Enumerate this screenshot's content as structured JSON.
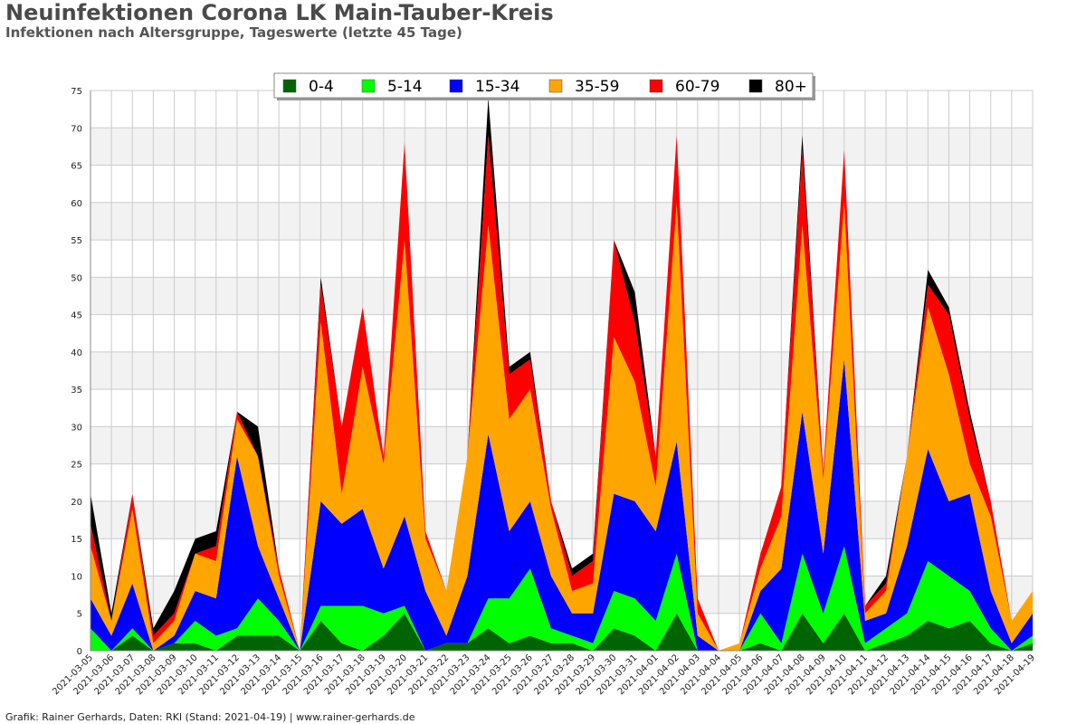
{
  "header": {
    "title": "Neuinfektionen Corona LK Main-Tauber-Kreis",
    "subtitle": "Infektionen nach Altersgruppe, Tageswerte (letzte 45 Tage)"
  },
  "footer": {
    "text": "Grafik: Rainer Gerhards, Daten: RKI (Stand: 2021-04-19) | www.rainer-gerhards.de"
  },
  "chart_data": {
    "type": "area",
    "stacked": true,
    "title": "Neuinfektionen Corona LK Main-Tauber-Kreis",
    "subtitle": "Infektionen nach Altersgruppe, Tageswerte (letzte 45 Tage)",
    "xlabel": "",
    "ylabel": "",
    "ylim": [
      0,
      75
    ],
    "yticks": [
      0,
      5,
      10,
      15,
      20,
      25,
      30,
      35,
      40,
      45,
      50,
      55,
      60,
      65,
      70,
      75
    ],
    "grid": true,
    "legend_position": "top-center",
    "categories": [
      "2021-03-05",
      "2021-03-06",
      "2021-03-07",
      "2021-03-08",
      "2021-03-09",
      "2021-03-10",
      "2021-03-11",
      "2021-03-12",
      "2021-03-13",
      "2021-03-14",
      "2021-03-15",
      "2021-03-16",
      "2021-03-17",
      "2021-03-18",
      "2021-03-19",
      "2021-03-20",
      "2021-03-21",
      "2021-03-22",
      "2021-03-23",
      "2021-03-24",
      "2021-03-25",
      "2021-03-26",
      "2021-03-27",
      "2021-03-28",
      "2021-03-29",
      "2021-03-30",
      "2021-03-31",
      "2021-04-01",
      "2021-04-02",
      "2021-04-03",
      "2021-04-04",
      "2021-04-05",
      "2021-04-06",
      "2021-04-07",
      "2021-04-08",
      "2021-04-09",
      "2021-04-10",
      "2021-04-11",
      "2021-04-12",
      "2021-04-13",
      "2021-04-14",
      "2021-04-15",
      "2021-04-16",
      "2021-04-17",
      "2021-04-18",
      "2021-04-19"
    ],
    "series": [
      {
        "name": "0-4",
        "color": "#006400",
        "values": [
          0,
          0,
          2,
          0,
          1,
          1,
          0,
          2,
          2,
          2,
          0,
          4,
          1,
          0,
          2,
          5,
          0,
          1,
          1,
          3,
          1,
          2,
          1,
          1,
          0,
          3,
          2,
          0,
          5,
          0,
          0,
          0,
          1,
          0,
          5,
          1,
          5,
          0,
          1,
          2,
          4,
          3,
          4,
          1,
          0,
          1
        ]
      },
      {
        "name": "5-14",
        "color": "#00ff00",
        "values": [
          3,
          0,
          1,
          0,
          0,
          3,
          2,
          1,
          5,
          2,
          0,
          2,
          5,
          6,
          3,
          1,
          0,
          0,
          0,
          4,
          6,
          9,
          2,
          1,
          1,
          5,
          5,
          4,
          8,
          0,
          0,
          0,
          4,
          1,
          8,
          4,
          9,
          1,
          2,
          3,
          8,
          7,
          4,
          2,
          0,
          1
        ]
      },
      {
        "name": "15-34",
        "color": "#0000ff",
        "values": [
          4,
          2,
          6,
          0,
          1,
          4,
          5,
          23,
          7,
          3,
          0,
          14,
          11,
          13,
          6,
          12,
          8,
          1,
          9,
          22,
          9,
          9,
          7,
          3,
          4,
          13,
          13,
          12,
          15,
          2,
          0,
          0,
          3,
          10,
          19,
          8,
          25,
          3,
          2,
          9,
          15,
          10,
          13,
          5,
          1,
          3
        ]
      },
      {
        "name": "35-59",
        "color": "#ffa500",
        "values": [
          7,
          2,
          10,
          1,
          2,
          5,
          5,
          5,
          12,
          3,
          0,
          24,
          4,
          19,
          14,
          37,
          7,
          6,
          16,
          28,
          15,
          15,
          9,
          3,
          4,
          21,
          16,
          6,
          32,
          3,
          0,
          1,
          3,
          7,
          25,
          10,
          21,
          1,
          3,
          12,
          19,
          17,
          4,
          10,
          3,
          3
        ]
      },
      {
        "name": "60-79",
        "color": "#ff0000",
        "values": [
          3,
          0,
          2,
          1,
          1,
          0,
          2,
          1,
          0,
          1,
          0,
          5,
          9,
          8,
          1,
          13,
          1,
          0,
          0,
          12,
          6,
          4,
          1,
          2,
          3,
          13,
          8,
          4,
          9,
          2,
          0,
          0,
          2,
          4,
          10,
          1,
          7,
          1,
          1,
          0,
          3,
          8,
          6,
          2,
          0,
          0
        ]
      },
      {
        "name": "80+",
        "color": "#000000",
        "values": [
          4,
          1,
          0,
          1,
          3,
          2,
          2,
          0,
          4,
          0,
          0,
          1,
          0,
          0,
          0,
          0,
          0,
          0,
          0,
          5,
          1,
          1,
          0,
          1,
          1,
          0,
          4,
          0,
          0,
          0,
          0,
          0,
          0,
          0,
          2,
          0,
          0,
          0,
          1,
          0,
          2,
          1,
          1,
          0,
          0,
          0
        ]
      }
    ]
  }
}
